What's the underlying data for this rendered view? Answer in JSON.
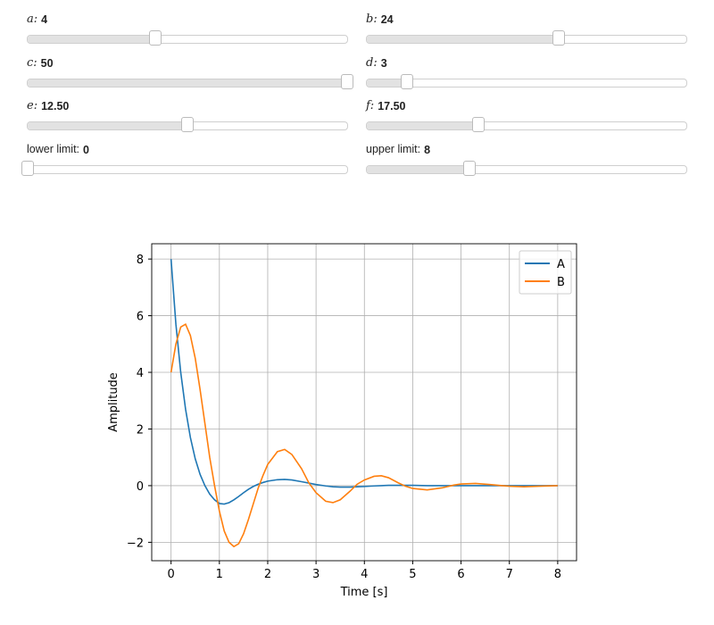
{
  "sliders": [
    {
      "label": "a:",
      "math": true,
      "value": 4,
      "min": 0,
      "max": 10
    },
    {
      "label": "b:",
      "math": true,
      "value": 24,
      "min": 0,
      "max": 40
    },
    {
      "label": "c:",
      "math": true,
      "value": 50,
      "min": 0,
      "max": 50
    },
    {
      "label": "d:",
      "math": true,
      "value": 3,
      "min": 0,
      "max": 24
    },
    {
      "label": "e:",
      "math": true,
      "value": 12.5,
      "value_label": "12.50",
      "min": 0,
      "max": 25
    },
    {
      "label": "f:",
      "math": true,
      "value": 17.5,
      "value_label": "17.50",
      "min": 0,
      "max": 50
    },
    {
      "label": "lower limit:",
      "math": false,
      "value": 0,
      "min": 0,
      "max": 25
    },
    {
      "label": "upper limit:",
      "math": false,
      "value": 8,
      "min": 0,
      "max": 25
    }
  ],
  "chart_data": {
    "type": "line",
    "x_label": "Time [s]",
    "y_label": "Amplitude",
    "x": [
      0,
      0.1,
      0.2,
      0.3,
      0.4,
      0.5,
      0.6,
      0.7,
      0.8,
      0.9,
      1.0,
      1.1,
      1.2,
      1.3,
      1.4,
      1.5,
      1.6,
      1.7,
      1.8,
      1.9,
      2.0,
      2.2,
      2.35,
      2.5,
      2.7,
      2.85,
      3.0,
      3.2,
      3.35,
      3.5,
      3.7,
      3.85,
      4.0,
      4.2,
      4.35,
      4.5,
      4.7,
      4.85,
      5.0,
      5.3,
      5.6,
      5.85,
      6.0,
      6.3,
      6.6,
      6.85,
      7.0,
      7.3,
      7.6,
      8.0
    ],
    "series": [
      {
        "name": "A",
        "color": "#1f77b4",
        "values": [
          8,
          5.7,
          4.0,
          2.7,
          1.7,
          0.95,
          0.4,
          0.0,
          -0.3,
          -0.5,
          -0.63,
          -0.65,
          -0.6,
          -0.5,
          -0.38,
          -0.25,
          -0.13,
          -0.03,
          0.05,
          0.11,
          0.16,
          0.21,
          0.22,
          0.2,
          0.14,
          0.09,
          0.04,
          -0.01,
          -0.04,
          -0.05,
          -0.05,
          -0.04,
          -0.03,
          -0.01,
          0,
          0.01,
          0.01,
          0.01,
          0.01,
          0,
          0,
          0,
          0,
          0,
          0,
          0,
          0,
          0,
          0,
          0
        ]
      },
      {
        "name": "B",
        "color": "#ff7f0e",
        "values": [
          4,
          5.0,
          5.6,
          5.7,
          5.3,
          4.5,
          3.4,
          2.2,
          1.0,
          0.0,
          -0.9,
          -1.6,
          -2.0,
          -2.15,
          -2.05,
          -1.7,
          -1.2,
          -0.65,
          -0.1,
          0.35,
          0.75,
          1.2,
          1.28,
          1.1,
          0.6,
          0.1,
          -0.25,
          -0.55,
          -0.6,
          -0.5,
          -0.2,
          0.05,
          0.2,
          0.33,
          0.35,
          0.28,
          0.1,
          -0.02,
          -0.1,
          -0.15,
          -0.08,
          0.02,
          0.06,
          0.08,
          0.04,
          0,
          -0.02,
          -0.04,
          -0.02,
          0
        ]
      }
    ],
    "xlim": [
      -0.4,
      8.39
    ],
    "xticks": [
      0,
      1,
      2,
      3,
      4,
      5,
      6,
      7,
      8
    ],
    "ylim": [
      -2.65,
      8.54
    ],
    "yticks": [
      {
        "value": -2,
        "label": "−2"
      },
      0,
      2,
      4,
      6,
      8
    ],
    "grid": true,
    "legend": "upper right"
  }
}
